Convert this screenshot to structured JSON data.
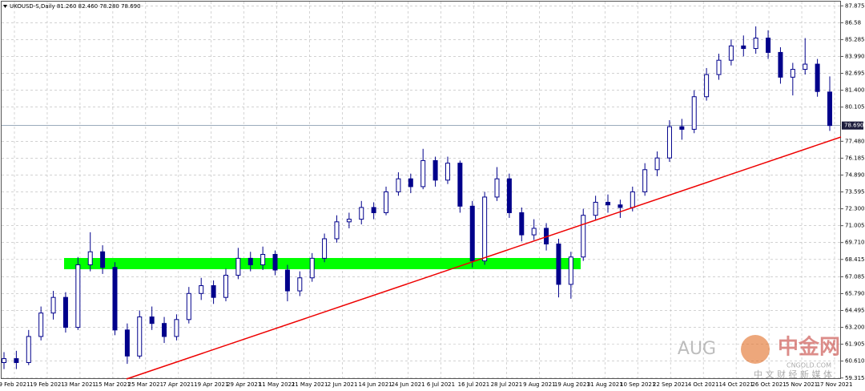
{
  "chart_data": {
    "type": "candlestick",
    "header": "UKOUSD-S,Daily  81.260 82.460 78.280 78.690",
    "xtick_labels": [
      "9 Feb 2021",
      "19 Feb 2021",
      "3 Mar 2021",
      "15 Mar 2021",
      "25 Mar 2021",
      "7 Apr 2021",
      "19 Apr 2021",
      "29 Apr 2021",
      "11 May 2021",
      "21 May 2021",
      "2 Jun 2021",
      "14 Jun 2021",
      "24 Jun 2021",
      "6 Jul 2021",
      "16 Jul 2021",
      "28 Jul 2021",
      "9 Aug 2021",
      "19 Aug 2021",
      "31 Aug 2021",
      "10 Sep 2021",
      "22 Sep 2021",
      "4 Oct 2021",
      "14 Oct 2021",
      "26 Oct 2021",
      "5 Nov 2021",
      "17 Nov 2021"
    ],
    "ylim": [
      59.3,
      88.2
    ],
    "yticks": [
      87.875,
      86.58,
      {
        "value": 85.285,
        "label": "85.285"
      },
      {
        "value": 83.99,
        "label": "83.990"
      },
      82.695,
      {
        "value": 81.4,
        "label": "81.400"
      },
      80.105,
      {
        "value": 77.48,
        "label": "77.480"
      },
      76.185,
      {
        "value": 74.89,
        "label": "74.890"
      },
      73.595,
      {
        "value": 72.3,
        "label": "72.300"
      },
      71.005,
      {
        "value": 69.71,
        "label": "69.710"
      },
      68.415,
      67.085,
      {
        "value": 65.79,
        "label": "65.790"
      },
      64.495,
      {
        "value": 63.2,
        "label": "63.200"
      },
      61.905,
      {
        "value": 60.61,
        "label": "60.610"
      },
      59.315
    ],
    "current_price": {
      "value": 78.69,
      "label": "78.690"
    },
    "grid": true,
    "color": "#00008b",
    "open": [
      60.5,
      60.8,
      60.5,
      62.5,
      64.3,
      65.5,
      63.2,
      68.0,
      69.0,
      67.8,
      63.0,
      61.0,
      64.0,
      63.5,
      62.5,
      63.8,
      65.8,
      66.4,
      65.5,
      67.2,
      68.5,
      68.0,
      68.8,
      67.6,
      66.0,
      67.0,
      68.5,
      70.0,
      71.3,
      71.5,
      72.4,
      72.0,
      73.6,
      74.6,
      74.0,
      76.0,
      74.5,
      75.8,
      72.5,
      68.3,
      73.2,
      74.6,
      72.0,
      70.3,
      70.8,
      69.6,
      66.5,
      68.6,
      71.8,
      72.8,
      72.6,
      72.4,
      73.6,
      75.3,
      76.2,
      78.6,
      78.4,
      80.9,
      82.6,
      83.7,
      84.8,
      84.6,
      85.4,
      84.3,
      82.4,
      83.0,
      83.4,
      81.26
    ],
    "high": [
      61.3,
      61.4,
      63.0,
      64.8,
      66.0,
      65.9,
      68.6,
      70.5,
      69.5,
      68.2,
      63.5,
      64.5,
      64.8,
      64.0,
      64.2,
      66.3,
      67.0,
      66.8,
      67.7,
      69.3,
      69.0,
      69.4,
      69.1,
      68.0,
      67.5,
      68.9,
      70.4,
      71.8,
      72.0,
      72.9,
      72.8,
      74.0,
      75.1,
      75.0,
      76.9,
      76.3,
      76.3,
      76.0,
      72.9,
      73.6,
      75.5,
      75.0,
      72.4,
      71.5,
      71.2,
      70.0,
      69.0,
      72.3,
      73.3,
      73.4,
      73.0,
      74.0,
      75.8,
      76.7,
      79.1,
      79.2,
      81.4,
      83.1,
      84.2,
      85.3,
      85.6,
      86.3,
      86.0,
      84.7,
      83.5,
      85.4,
      83.8,
      82.46
    ],
    "low": [
      60.0,
      60.0,
      60.3,
      62.2,
      63.8,
      62.8,
      63.0,
      67.5,
      67.3,
      62.6,
      60.4,
      60.8,
      63.0,
      62.0,
      62.2,
      63.5,
      65.3,
      65.0,
      65.2,
      66.9,
      67.5,
      67.6,
      67.2,
      65.2,
      65.6,
      66.7,
      68.2,
      69.7,
      70.8,
      71.1,
      71.5,
      71.8,
      73.3,
      73.5,
      73.8,
      74.0,
      74.2,
      72.0,
      67.8,
      68.0,
      72.9,
      71.6,
      69.8,
      69.9,
      69.1,
      65.5,
      65.4,
      68.3,
      71.4,
      72.0,
      71.6,
      72.1,
      73.3,
      74.8,
      75.9,
      77.6,
      78.1,
      80.6,
      82.2,
      83.3,
      84.0,
      84.2,
      83.8,
      81.9,
      81.0,
      82.6,
      80.9,
      78.28
    ],
    "close": [
      60.8,
      60.5,
      62.5,
      64.3,
      65.5,
      63.2,
      68.0,
      69.0,
      67.8,
      63.0,
      61.0,
      64.0,
      63.5,
      62.5,
      63.8,
      65.8,
      66.4,
      65.5,
      67.2,
      68.5,
      68.0,
      68.8,
      67.6,
      66.0,
      67.0,
      68.5,
      70.0,
      71.3,
      71.5,
      72.4,
      72.0,
      73.6,
      74.6,
      74.0,
      76.0,
      74.5,
      75.8,
      72.5,
      68.3,
      73.2,
      74.6,
      72.0,
      70.3,
      70.8,
      69.6,
      66.5,
      68.6,
      71.8,
      72.8,
      72.6,
      72.4,
      73.6,
      75.3,
      76.2,
      78.6,
      78.4,
      80.9,
      82.6,
      83.7,
      84.8,
      84.6,
      85.4,
      84.3,
      82.4,
      83.0,
      83.4,
      81.3,
      78.69
    ]
  },
  "watermark": {
    "brand": "AUG",
    "site": "中金网",
    "domain": "CNGOLD.COM",
    "slogan": "中 文 财 经 新 媒 体"
  }
}
